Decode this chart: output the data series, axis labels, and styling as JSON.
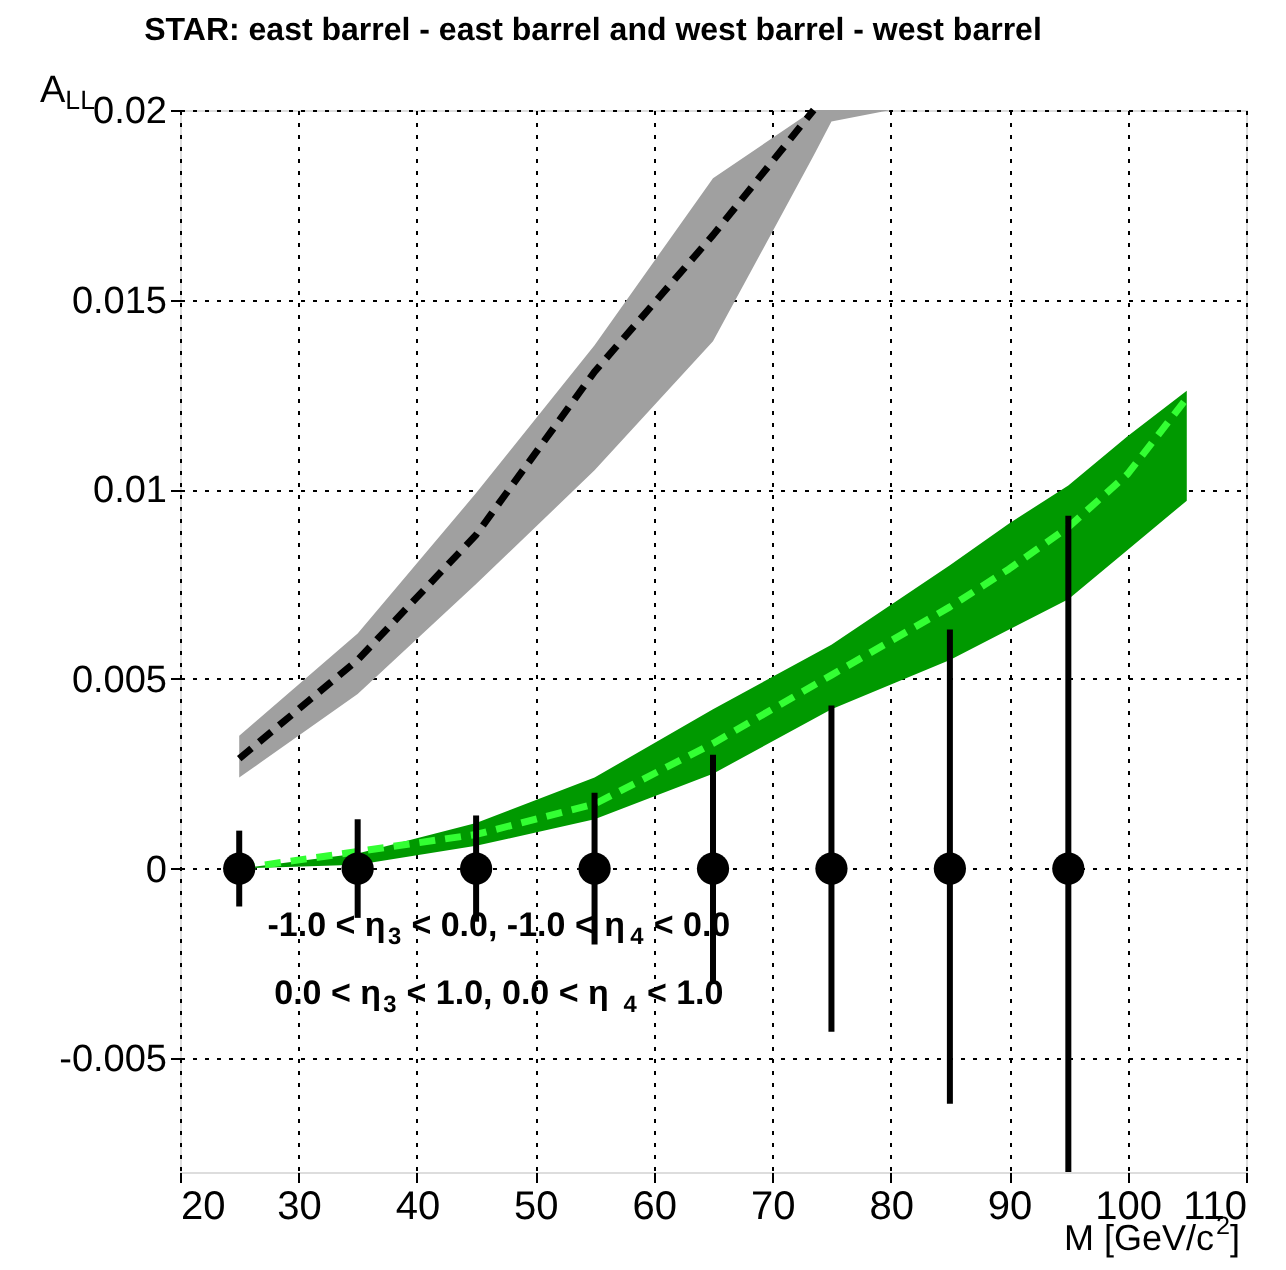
{
  "chart_data": {
    "type": "line",
    "title": "STAR: east barrel - east barrel and west barrel - west barrel",
    "xlabel": "M [GeV/c$^{2}$]",
    "ylabel": "A$_{LL}$",
    "annotations": [
      "-1.0 < η$_{3}$ < 0.0, -1.0 < η$_{4}$ < 0.0",
      "0.0 < η$_{3}$ < 1.0,  0.0 < η$_{4}$ < 1.0"
    ],
    "xlim": [
      20,
      110
    ],
    "xticks": [
      20,
      30,
      40,
      50,
      60,
      70,
      80,
      90,
      100,
      110
    ],
    "ylim": [
      -0.008,
      0.02
    ],
    "yticks": [
      -0.005,
      0,
      0.005,
      0.01,
      0.015,
      0.02
    ],
    "grid": true,
    "series": [
      {
        "color": "#000000",
        "line_style": "dashed",
        "x": [
          25,
          35,
          45,
          55,
          65,
          73.5,
          75,
          80
        ],
        "values": [
          0.0029,
          0.0055,
          0.0088,
          0.0131,
          0.0167,
          0.02,
          null,
          null
        ],
        "lower": [
          0.0024,
          0.0046,
          0.0075,
          0.0105,
          0.0139,
          0.0188,
          0.0197,
          0.02
        ],
        "upper": [
          0.0035,
          0.0062,
          0.0099,
          0.0138,
          0.0182,
          0.02,
          0.02,
          0.02
        ]
      },
      {
        "color": "#33ff33",
        "line_style": "dashed",
        "x": [
          25,
          35,
          45,
          55,
          65,
          75,
          85,
          90,
          95,
          100,
          105
        ],
        "values": [
          0,
          null,
          0.0009,
          0.0017,
          0.0033,
          0.0051,
          0.0069,
          0.0079,
          0.009,
          0.0104,
          0.0124
        ],
        "lower": [
          0,
          0.0001,
          0.0006,
          0.0013,
          0.0025,
          0.0042,
          0.0055,
          0.0063,
          0.0071,
          0.0084,
          0.0097
        ],
        "upper": [
          0,
          0.0004,
          0.0012,
          0.0024,
          0.0042,
          0.0059,
          0.008,
          0.0091,
          0.0101,
          0.0114,
          0.0126
        ]
      },
      {
        "type": "scatter",
        "color": "#000000",
        "marker": "circle",
        "x": [
          25,
          35,
          45,
          55,
          65,
          75,
          85,
          95
        ],
        "values": [
          0,
          0,
          0,
          0,
          0,
          0,
          0,
          0
        ],
        "errors": [
          [
            -0.001,
            0.001
          ],
          [
            -0.0013,
            0.0013
          ],
          [
            -0.0014,
            0.0014
          ],
          [
            -0.002,
            0.002
          ],
          [
            -0.003,
            0.003
          ],
          [
            -0.0043,
            0.0043
          ],
          [
            -0.0062,
            0.0063
          ],
          [
            -0.008,
            0.0093
          ]
        ]
      }
    ]
  }
}
